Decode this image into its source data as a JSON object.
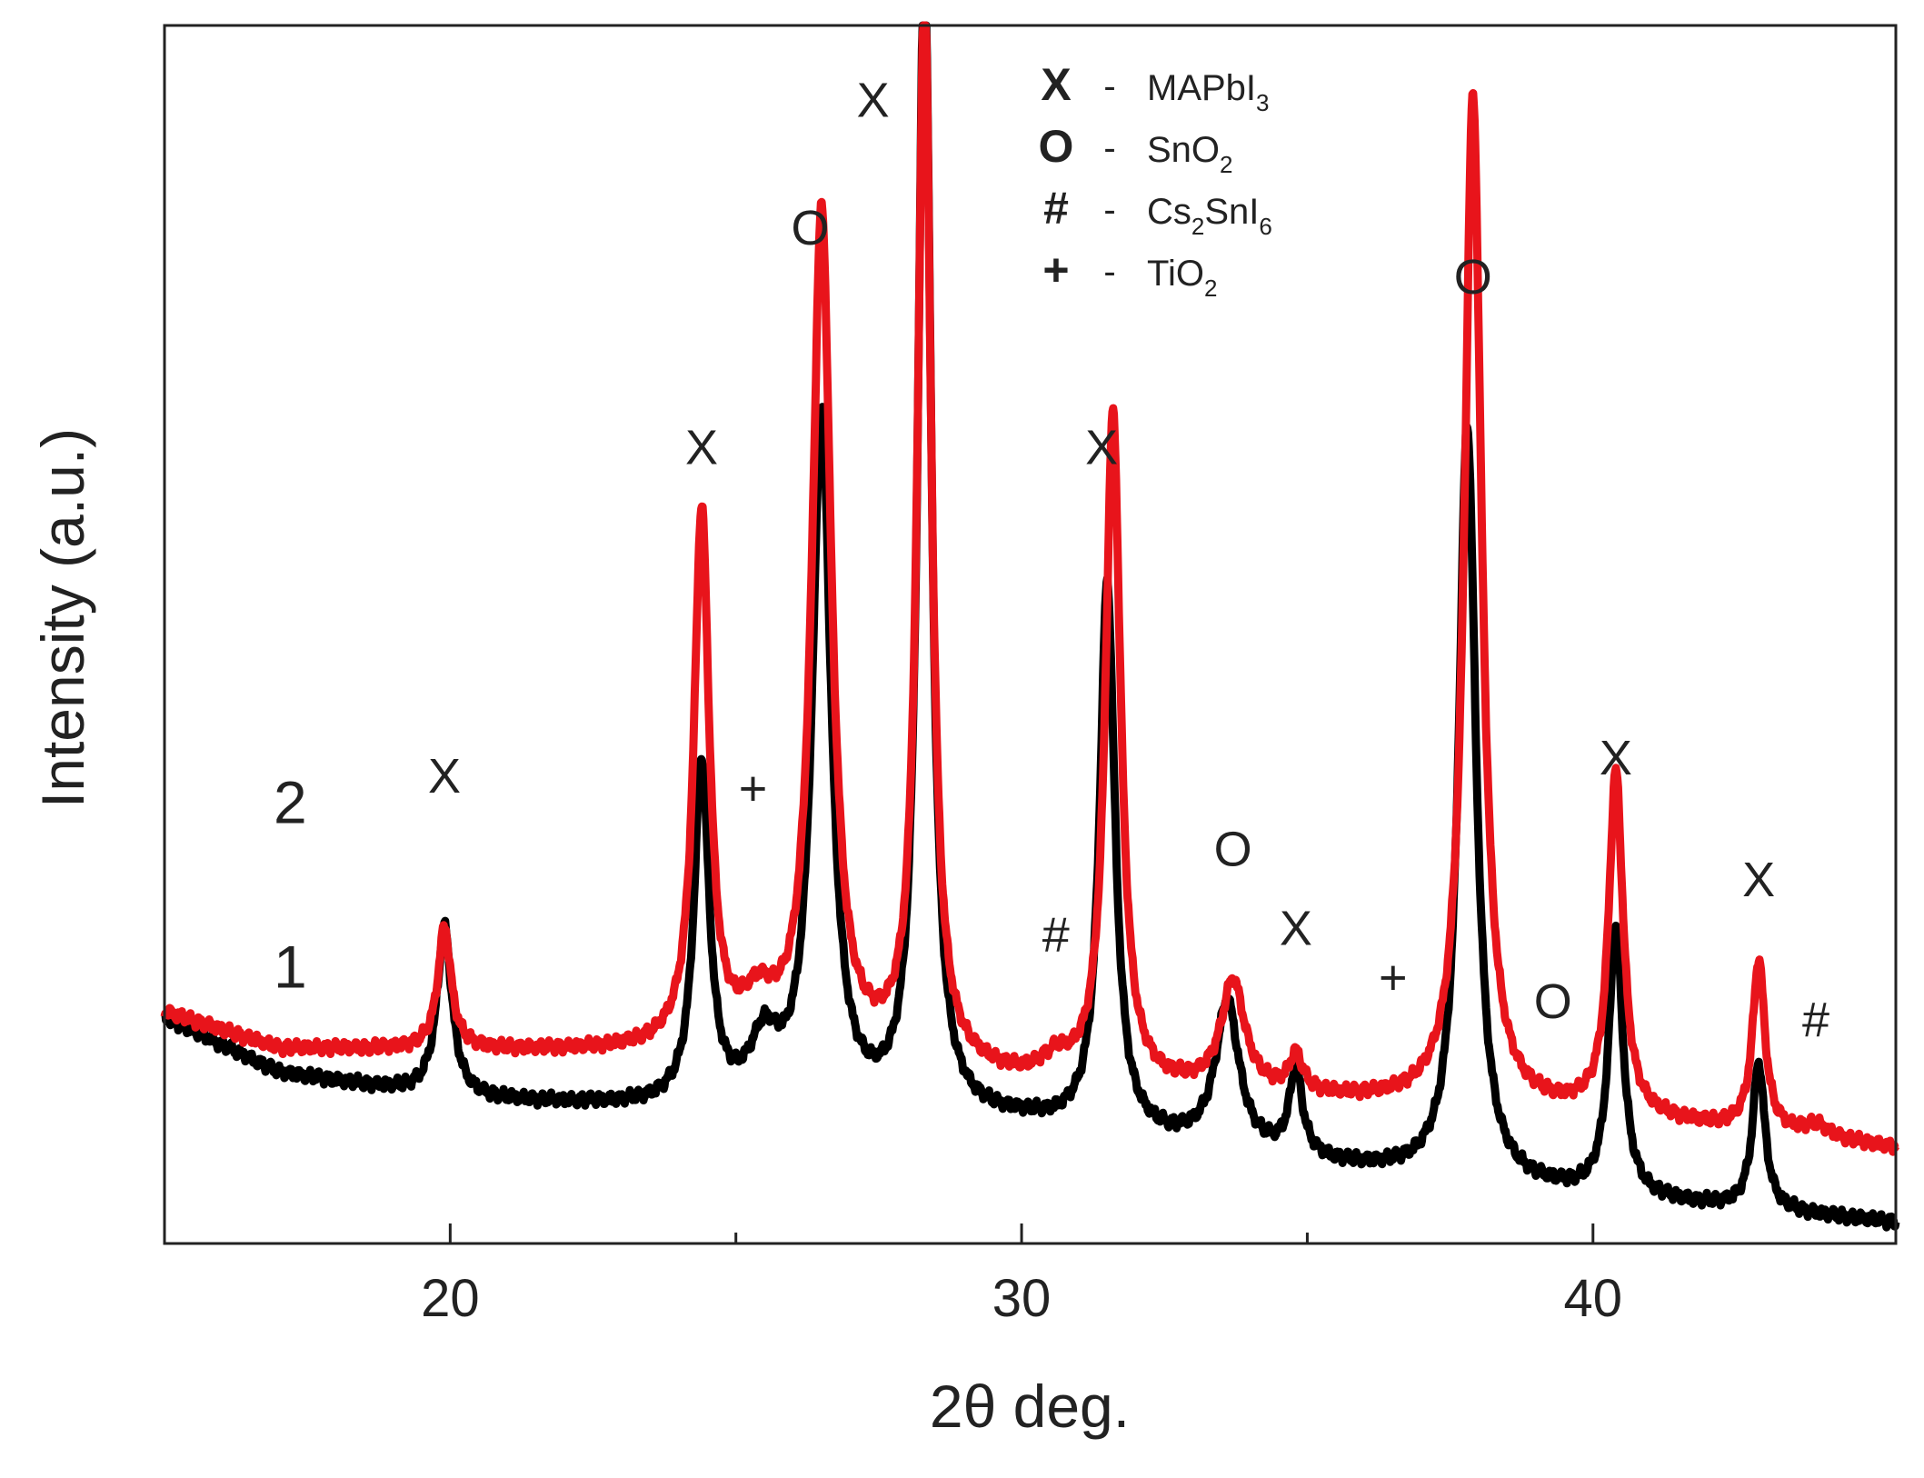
{
  "chart_data": {
    "type": "line",
    "xlabel": "2θ deg.",
    "ylabel": "Intensity (a.u.)",
    "xlim": [
      15,
      45.3
    ],
    "ylim": [
      0,
      100
    ],
    "xticks": [
      20,
      30,
      40
    ],
    "xticks_minor": [
      25,
      35
    ],
    "series": [
      {
        "name": "1",
        "color": "#000000",
        "offset": 0,
        "baseline": [
          [
            15,
            18.5
          ],
          [
            17,
            14
          ],
          [
            20,
            11.8
          ],
          [
            25,
            10.8
          ],
          [
            30,
            9.8
          ],
          [
            35,
            6.5
          ],
          [
            40,
            3.8
          ],
          [
            45.3,
            1.7
          ]
        ],
        "peaks": [
          {
            "x": 19.9,
            "h": 14,
            "w": 0.16
          },
          {
            "x": 24.4,
            "h": 28,
            "w": 0.16
          },
          {
            "x": 25.5,
            "h": 5,
            "w": 0.3
          },
          {
            "x": 26.5,
            "h": 57,
            "w": 0.2
          },
          {
            "x": 28.3,
            "h": 95,
            "w": 0.14
          },
          {
            "x": 31.5,
            "h": 45,
            "w": 0.16
          },
          {
            "x": 33.6,
            "h": 12,
            "w": 0.25
          },
          {
            "x": 34.8,
            "h": 7,
            "w": 0.14
          },
          {
            "x": 37.8,
            "h": 62,
            "w": 0.18
          },
          {
            "x": 40.4,
            "h": 22,
            "w": 0.15
          },
          {
            "x": 42.9,
            "h": 12,
            "w": 0.13
          }
        ]
      },
      {
        "name": "2",
        "color": "#e8141b",
        "offset": 10,
        "baseline": [
          [
            15,
            19
          ],
          [
            17,
            16
          ],
          [
            20,
            15.8
          ],
          [
            24,
            15.6
          ],
          [
            28,
            14.5
          ],
          [
            30,
            13
          ],
          [
            35,
            11.8
          ],
          [
            40,
            10.5
          ],
          [
            45.3,
            7.8
          ]
        ],
        "peaks": [
          {
            "x": 19.9,
            "h": 10,
            "w": 0.14
          },
          {
            "x": 24.4,
            "h": 44,
            "w": 0.16
          },
          {
            "x": 25.4,
            "h": 3.5,
            "w": 0.35
          },
          {
            "x": 26.5,
            "h": 69,
            "w": 0.2
          },
          {
            "x": 28.3,
            "h": 88,
            "w": 0.14
          },
          {
            "x": 30.6,
            "h": 1.5,
            "w": 0.3
          },
          {
            "x": 31.6,
            "h": 55,
            "w": 0.16
          },
          {
            "x": 33.7,
            "h": 9,
            "w": 0.25
          },
          {
            "x": 34.8,
            "h": 3,
            "w": 0.14
          },
          {
            "x": 37.9,
            "h": 83,
            "w": 0.18
          },
          {
            "x": 40.4,
            "h": 28,
            "w": 0.15
          },
          {
            "x": 42.9,
            "h": 14,
            "w": 0.13
          },
          {
            "x": 43.9,
            "h": 1,
            "w": 0.3
          }
        ]
      }
    ],
    "curve_labels": [
      {
        "text": "2",
        "series": "2",
        "x": 17.2,
        "y": 34.5
      },
      {
        "text": "1",
        "series": "1",
        "x": 17.2,
        "y": 21
      }
    ],
    "peak_markers": [
      {
        "text": "X",
        "x": 19.9,
        "y": 37
      },
      {
        "text": "X",
        "x": 24.4,
        "y": 64
      },
      {
        "text": "+",
        "x": 25.3,
        "y": 36
      },
      {
        "text": "O",
        "x": 26.3,
        "y": 82
      },
      {
        "text": "X",
        "x": 27.4,
        "y": 92.5
      },
      {
        "text": "#",
        "x": 30.6,
        "y": 24
      },
      {
        "text": "X",
        "x": 31.4,
        "y": 64
      },
      {
        "text": "O",
        "x": 33.7,
        "y": 31
      },
      {
        "text": "X",
        "x": 34.8,
        "y": 24.5
      },
      {
        "text": "+",
        "x": 36.5,
        "y": 20.5
      },
      {
        "text": "O",
        "x": 37.9,
        "y": 78
      },
      {
        "text": "O",
        "x": 39.3,
        "y": 18.5
      },
      {
        "text": "X",
        "x": 40.4,
        "y": 38.5
      },
      {
        "text": "X",
        "x": 42.9,
        "y": 28.5
      },
      {
        "text": "#",
        "x": 43.9,
        "y": 17
      }
    ],
    "legend": {
      "position": "top-center",
      "entries": [
        {
          "symbol": "X",
          "label": "MAPbI",
          "sub": "3"
        },
        {
          "symbol": "O",
          "label": "SnO",
          "sub": "2"
        },
        {
          "symbol": "#",
          "label": "Cs",
          "sub": "2",
          "label2": "SnI",
          "sub2": "6"
        },
        {
          "symbol": "+",
          "label": "TiO",
          "sub": "2"
        }
      ]
    }
  }
}
